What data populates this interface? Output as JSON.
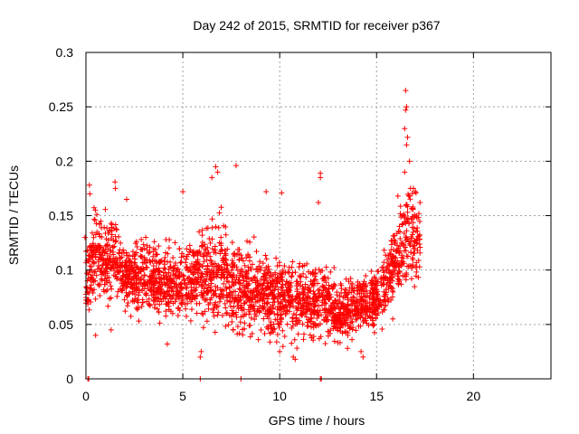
{
  "chart_data": {
    "type": "scatter",
    "title": "Day 242 of 2015, SRMTID for receiver p367",
    "xlabel": "GPS time / hours",
    "ylabel": "SRMTID / TECUs",
    "xlim": [
      0,
      24
    ],
    "ylim": [
      0,
      0.3
    ],
    "x_ticks": [
      0,
      5,
      10,
      15,
      20
    ],
    "x_tick_labels": [
      "0",
      "5",
      "10",
      "15",
      "20"
    ],
    "y_ticks": [
      0,
      0.05,
      0.1,
      0.15,
      0.2,
      0.25,
      0.3
    ],
    "y_tick_labels": [
      "0",
      "0.05",
      "0.1",
      "0.15",
      "0.2",
      "0.25",
      "0.3"
    ],
    "grid": true,
    "marker": "plus",
    "color": "#ff0000",
    "series": [
      {
        "name": "SRMTID",
        "trend": [
          [
            0.0,
            0.092,
            0.018
          ],
          [
            0.5,
            0.115,
            0.025
          ],
          [
            1.0,
            0.105,
            0.022
          ],
          [
            1.5,
            0.118,
            0.02
          ],
          [
            2.0,
            0.09,
            0.015
          ],
          [
            3.0,
            0.095,
            0.02
          ],
          [
            4.0,
            0.09,
            0.02
          ],
          [
            5.0,
            0.088,
            0.02
          ],
          [
            6.0,
            0.097,
            0.025
          ],
          [
            7.0,
            0.095,
            0.028
          ],
          [
            8.0,
            0.085,
            0.025
          ],
          [
            9.0,
            0.08,
            0.022
          ],
          [
            10.0,
            0.075,
            0.022
          ],
          [
            11.0,
            0.07,
            0.02
          ],
          [
            12.0,
            0.075,
            0.022
          ],
          [
            13.0,
            0.06,
            0.015
          ],
          [
            14.0,
            0.068,
            0.016
          ],
          [
            15.0,
            0.073,
            0.017
          ],
          [
            16.0,
            0.105,
            0.025
          ],
          [
            16.6,
            0.135,
            0.03
          ],
          [
            17.2,
            0.12,
            0.025
          ]
        ],
        "points_per_hour": 150,
        "x_start": 0.0,
        "x_end": 17.25,
        "extra_points": [
          [
            0.18,
            0.178
          ],
          [
            0.2,
            0.17
          ],
          [
            1.5,
            0.181
          ],
          [
            1.52,
            0.175
          ],
          [
            2.1,
            0.165
          ],
          [
            5.0,
            0.172
          ],
          [
            6.7,
            0.195
          ],
          [
            6.8,
            0.19
          ],
          [
            6.5,
            0.185
          ],
          [
            7.75,
            0.196
          ],
          [
            9.3,
            0.172
          ],
          [
            10.1,
            0.171
          ],
          [
            12.1,
            0.189
          ],
          [
            12.1,
            0.185
          ],
          [
            12.0,
            0.162
          ],
          [
            16.5,
            0.265
          ],
          [
            16.55,
            0.25
          ],
          [
            16.5,
            0.247
          ],
          [
            16.6,
            0.222
          ],
          [
            16.55,
            0.215
          ],
          [
            16.45,
            0.23
          ],
          [
            16.7,
            0.2
          ],
          [
            16.45,
            0.19
          ],
          [
            16.75,
            0.175
          ],
          [
            16.9,
            0.175
          ],
          [
            17.0,
            0.172
          ],
          [
            16.1,
            0.168
          ],
          [
            10.7,
            0.02
          ],
          [
            10.8,
            0.018
          ],
          [
            5.9,
            0.02
          ],
          [
            5.95,
            0.025
          ],
          [
            4.2,
            0.032
          ],
          [
            8.9,
            0.036
          ],
          [
            10.0,
            0.025
          ],
          [
            13.5,
            0.028
          ],
          [
            14.2,
            0.025
          ],
          [
            14.3,
            0.02
          ],
          [
            0.1,
            0.0
          ],
          [
            0.15,
            0.0
          ],
          [
            5.9,
            0.0
          ],
          [
            8.0,
            0.0
          ],
          [
            12.1,
            0.0
          ],
          [
            12.15,
            0.0
          ],
          [
            0.5,
            0.04
          ],
          [
            1.3,
            0.045
          ],
          [
            -0.05,
            0.13
          ]
        ]
      }
    ]
  }
}
